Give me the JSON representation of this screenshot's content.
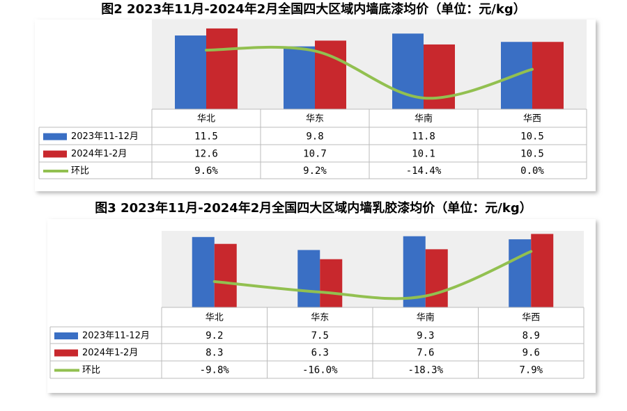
{
  "chart_data": [
    {
      "type": "bar",
      "title": "图2 2023年11月-2024年2月全国四大区域内墙底漆均价（单位：元/kg）",
      "categories": [
        "华北",
        "华东",
        "华南",
        "华西"
      ],
      "series": [
        {
          "name": "2023年11-12月",
          "color": "#3a6fc4",
          "values": [
            11.5,
            9.8,
            11.8,
            10.5
          ]
        },
        {
          "name": "2024年1-2月",
          "color": "#c8282d",
          "values": [
            12.6,
            10.7,
            10.1,
            10.5
          ]
        },
        {
          "name": "环比",
          "type": "line",
          "axis": "y2",
          "color": "#92c050",
          "values": [
            9.6,
            9.2,
            -14.4,
            0.0
          ],
          "value_labels": [
            "9.6%",
            "9.2%",
            "-14.4%",
            "0.0%"
          ]
        }
      ],
      "ylim": [
        0,
        14
      ],
      "y2lim": [
        -20,
        25
      ]
    },
    {
      "type": "bar",
      "title": "图3 2023年11月-2024年2月全国四大区域内墙乳胶漆均价（单位：元/kg）",
      "categories": [
        "华北",
        "华东",
        "华南",
        "华西"
      ],
      "series": [
        {
          "name": "2023年11-12月",
          "color": "#3a6fc4",
          "values": [
            9.2,
            7.5,
            9.3,
            8.9
          ]
        },
        {
          "name": "2024年1-2月",
          "color": "#c8282d",
          "values": [
            8.3,
            6.3,
            7.6,
            9.6
          ]
        },
        {
          "name": "环比",
          "type": "line",
          "axis": "y2",
          "color": "#92c050",
          "values": [
            -9.8,
            -16.0,
            -18.3,
            7.9
          ],
          "value_labels": [
            "-9.8%",
            "-16.0%",
            "-18.3%",
            "7.9%"
          ]
        }
      ],
      "ylim": [
        0,
        10
      ],
      "y2lim": [
        -25,
        20
      ]
    }
  ]
}
